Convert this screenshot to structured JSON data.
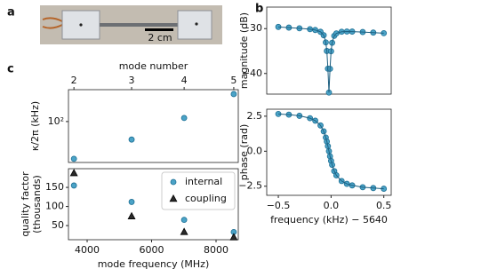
{
  "panels": {
    "labels": [
      "a",
      "b",
      "c"
    ],
    "scale_bar": "2 cm"
  },
  "chart_data": [
    {
      "type": "scatter",
      "ylabel": "κ/2π (kHz)",
      "ylog": true,
      "x": [
        3590,
        5380,
        7010,
        8550
      ],
      "series": [
        {
          "name": "internal",
          "color": "#4ba3c7",
          "marker": "circle",
          "values": [
            21,
            47,
            116,
            316
          ]
        }
      ],
      "xlim": [
        3420,
        8690
      ],
      "ylim": [
        18,
        380
      ],
      "yticks": [
        {
          "value": 100,
          "label": "10²"
        }
      ],
      "x2label": "mode number",
      "x2ticks": [
        {
          "value": 3590,
          "label": "2"
        },
        {
          "value": 5380,
          "label": "3"
        },
        {
          "value": 7010,
          "label": "4"
        },
        {
          "value": 8550,
          "label": "5"
        }
      ]
    },
    {
      "type": "scatter",
      "ylabel": [
        "quality factor",
        "(thousands)"
      ],
      "xlabel": "mode frequency (MHz)",
      "x": [
        3590,
        5380,
        7010,
        8550
      ],
      "series": [
        {
          "name": "internal",
          "color": "#4ba3c7",
          "marker": "circle",
          "values": [
            155,
            112,
            65,
            33
          ]
        },
        {
          "name": "coupling",
          "color": "#2b2b2b",
          "marker": "triangle",
          "values": [
            187,
            74,
            33,
            19
          ]
        }
      ],
      "xlim": [
        3420,
        8690
      ],
      "ylim": [
        13,
        199
      ],
      "xticks": [
        4000,
        6000,
        8000
      ],
      "yticks": [
        50,
        100,
        150
      ],
      "legend": "upper right"
    },
    {
      "type": "line",
      "ylabel": "magnitude (dB)",
      "color": "#4ba3c7",
      "x": [
        -0.5,
        -0.4,
        -0.3,
        -0.2,
        -0.15,
        -0.1,
        -0.07,
        -0.05,
        -0.04,
        -0.03,
        -0.02,
        -0.01,
        0,
        0.01,
        0.03,
        0.05,
        0.1,
        0.15,
        0.2,
        0.3,
        0.4,
        0.5
      ],
      "values": [
        -29.62,
        -29.77,
        -29.93,
        -30.13,
        -30.31,
        -30.71,
        -31.47,
        -33.07,
        -34.99,
        -38.93,
        -44.25,
        -38.96,
        -35.05,
        -33.15,
        -31.61,
        -31.07,
        -30.69,
        -30.64,
        -30.66,
        -30.76,
        -30.88,
        -31.01
      ],
      "xlim": [
        -0.61,
        0.57
      ],
      "ylim": [
        -44.6,
        -25.2
      ],
      "yticks": [
        {
          "value": -30,
          "label": "−30"
        },
        {
          "value": -40,
          "label": "−40"
        }
      ]
    },
    {
      "type": "line",
      "ylabel": "phase (rad)",
      "xlabel": "frequency (kHz) − 5640",
      "color": "#4ba3c7",
      "x": [
        -0.5,
        -0.4,
        -0.3,
        -0.2,
        -0.15,
        -0.1,
        -0.07,
        -0.05,
        -0.04,
        -0.03,
        -0.02,
        -0.01,
        0,
        0.01,
        0.03,
        0.05,
        0.1,
        0.15,
        0.2,
        0.3,
        0.4,
        0.5
      ],
      "values": [
        2.66,
        2.61,
        2.53,
        2.36,
        2.18,
        1.84,
        1.42,
        0.98,
        0.69,
        0.36,
        0,
        -0.36,
        -0.69,
        -0.98,
        -1.42,
        -1.72,
        -2.13,
        -2.33,
        -2.44,
        -2.57,
        -2.63,
        -2.68
      ],
      "xlim": [
        -0.61,
        0.57
      ],
      "ylim": [
        -3.15,
        3.0
      ],
      "xticks": [
        {
          "value": -0.5,
          "label": "−0.5"
        },
        {
          "value": 0,
          "label": "0.0"
        },
        {
          "value": 0.5,
          "label": "0.5"
        }
      ],
      "yticks": [
        {
          "value": 2.5,
          "label": "2.5"
        },
        {
          "value": 0,
          "label": "0.0"
        },
        {
          "value": -2.5,
          "label": "−2.5"
        }
      ]
    }
  ]
}
